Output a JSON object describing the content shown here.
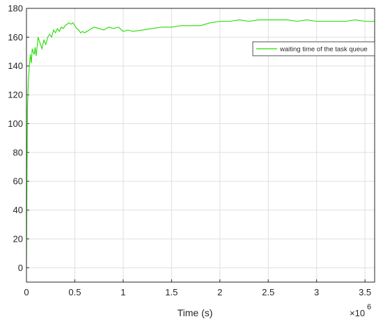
{
  "chart_data": {
    "type": "line",
    "xlabel": "Time (s)",
    "ylabel": "",
    "x_scale_exponent_label": "×10",
    "x_scale_exponent_power": "6",
    "xlim": [
      0,
      3600000
    ],
    "ylim": [
      -10,
      180
    ],
    "x_ticks": [
      0,
      500000,
      1000000,
      1500000,
      2000000,
      2500000,
      3000000,
      3500000
    ],
    "x_tick_labels": [
      "0",
      "0.5",
      "1",
      "1.5",
      "2",
      "2.5",
      "3",
      "3.5"
    ],
    "y_ticks": [
      0,
      20,
      40,
      60,
      80,
      100,
      120,
      140,
      160,
      180
    ],
    "y_tick_labels": [
      "0",
      "20",
      "40",
      "60",
      "80",
      "100",
      "120",
      "140",
      "160",
      "180"
    ],
    "grid": true,
    "legend_position": "top-right",
    "line_color": "#22dd00",
    "grid_color": "#dfdfdf",
    "axis_color": "#262626",
    "series": [
      {
        "name": "waiting time of the task queue",
        "x": [
          0,
          5000,
          10000,
          20000,
          30000,
          40000,
          50000,
          60000,
          70000,
          80000,
          90000,
          100000,
          120000,
          140000,
          160000,
          180000,
          200000,
          220000,
          240000,
          260000,
          280000,
          300000,
          320000,
          340000,
          360000,
          380000,
          400000,
          420000,
          440000,
          460000,
          480000,
          500000,
          520000,
          540000,
          560000,
          580000,
          600000,
          650000,
          700000,
          750000,
          800000,
          850000,
          900000,
          950000,
          1000000,
          1050000,
          1100000,
          1200000,
          1300000,
          1400000,
          1500000,
          1600000,
          1700000,
          1800000,
          1900000,
          2000000,
          2100000,
          2200000,
          2300000,
          2400000,
          2500000,
          2600000,
          2700000,
          2800000,
          2900000,
          3000000,
          3100000,
          3200000,
          3300000,
          3400000,
          3500000,
          3600000
        ],
        "values": [
          0,
          60,
          110,
          130,
          140,
          148,
          142,
          152,
          150,
          148,
          153,
          147,
          160,
          156,
          152,
          158,
          155,
          160,
          162,
          160,
          165,
          163,
          166,
          164,
          167,
          166,
          168,
          169,
          170,
          169,
          170,
          168,
          166,
          165,
          163,
          164,
          163,
          165,
          167,
          166,
          165,
          167,
          166,
          167,
          164,
          165,
          164,
          165,
          166,
          167,
          167,
          168,
          168,
          168,
          170,
          171,
          171,
          172,
          171,
          172,
          172,
          172,
          172,
          171,
          172,
          171,
          171,
          171,
          171,
          172,
          171,
          171
        ]
      }
    ]
  }
}
